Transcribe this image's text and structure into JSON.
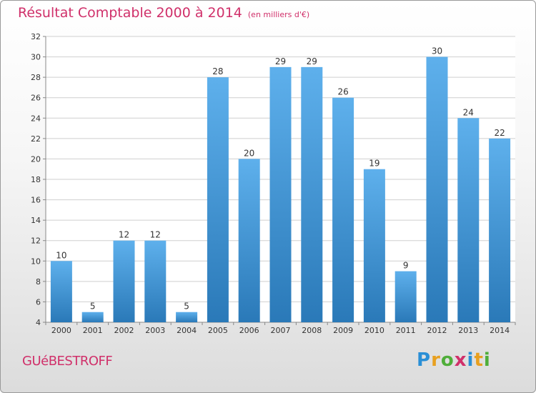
{
  "title": "Résultat Comptable 2000 à 2014",
  "subtitle": "(en milliers d'€)",
  "commune": "GUéBESTROFF",
  "logo": {
    "text": "Proxiti",
    "letters": [
      {
        "ch": "P",
        "color": "#2a8fd6"
      },
      {
        "ch": "r",
        "color": "#e8a020"
      },
      {
        "ch": "o",
        "color": "#4fae3a"
      },
      {
        "ch": "x",
        "color": "#d0306a"
      },
      {
        "ch": "i",
        "color": "#2a8fd6"
      },
      {
        "ch": "t",
        "color": "#e8a020"
      },
      {
        "ch": "i",
        "color": "#4fae3a"
      }
    ]
  },
  "colors": {
    "bar_top": "#5eb0ec",
    "bar_bottom": "#2a79b8",
    "accent": "#d0306a",
    "grid": "#cfcfcf"
  },
  "chart_data": {
    "type": "bar",
    "title": "Résultat Comptable 2000 à 2014",
    "subtitle": "(en milliers d'€)",
    "categories": [
      "2000",
      "2001",
      "2002",
      "2003",
      "2004",
      "2005",
      "2006",
      "2007",
      "2008",
      "2009",
      "2010",
      "2011",
      "2012",
      "2013",
      "2014"
    ],
    "values": [
      10,
      5,
      12,
      12,
      5,
      28,
      20,
      29,
      29,
      26,
      19,
      9,
      30,
      24,
      22
    ],
    "ylim": [
      4,
      32
    ],
    "yticks": [
      4,
      6,
      8,
      10,
      12,
      14,
      16,
      18,
      20,
      22,
      24,
      26,
      28,
      30,
      32
    ],
    "grid": true,
    "legend": "none"
  }
}
